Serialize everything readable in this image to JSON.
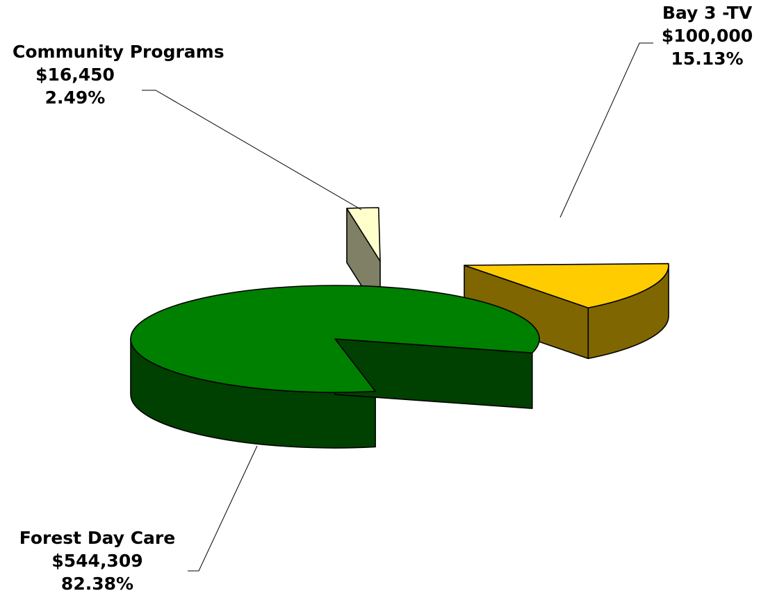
{
  "chart_data": {
    "type": "pie",
    "style": "3d-exploded",
    "title": "",
    "slices": [
      {
        "name": "Forest Day Care",
        "value": 544309,
        "value_label": "$544,309",
        "percent": 82.38,
        "percent_label": "82.38%",
        "top_color": "#008000",
        "side_color": "#004000"
      },
      {
        "name": "Bay 3 -TV",
        "value": 100000,
        "value_label": "$100,000",
        "percent": 15.13,
        "percent_label": "15.13%",
        "top_color": "#FFCC00",
        "side_color": "#806600"
      },
      {
        "name": "Community Programs",
        "value": 16450,
        "value_label": "$16,450",
        "percent": 2.49,
        "percent_label": "2.49%",
        "top_color": "#FFFFCC",
        "side_color": "#808066"
      }
    ],
    "legend": "none"
  }
}
